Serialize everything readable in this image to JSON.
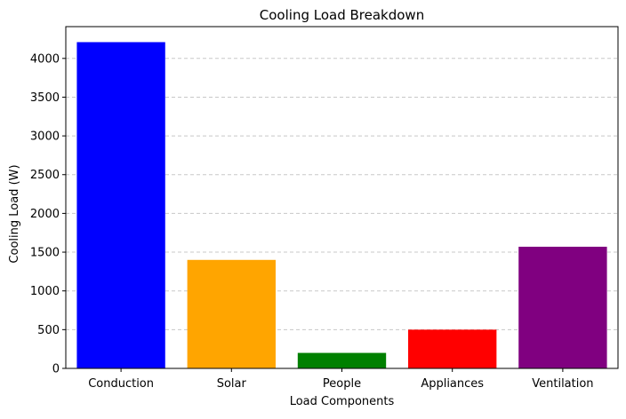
{
  "chart_data": {
    "type": "bar",
    "title": "Cooling Load Breakdown",
    "xlabel": "Load Components",
    "ylabel": "Cooling Load (W)",
    "categories": [
      "Conduction",
      "Solar",
      "People",
      "Appliances",
      "Ventilation"
    ],
    "values": [
      4210,
      1400,
      200,
      500,
      1570
    ],
    "colors": [
      "#0000ff",
      "#ffa500",
      "#008000",
      "#ff0000",
      "#800080"
    ],
    "ylim": [
      0,
      4410
    ],
    "yticks": [
      0,
      500,
      1000,
      1500,
      2000,
      2500,
      3000,
      3500,
      4000
    ],
    "grid": {
      "axis": "y",
      "style": "dashed",
      "color": "#c8c8c8"
    }
  }
}
